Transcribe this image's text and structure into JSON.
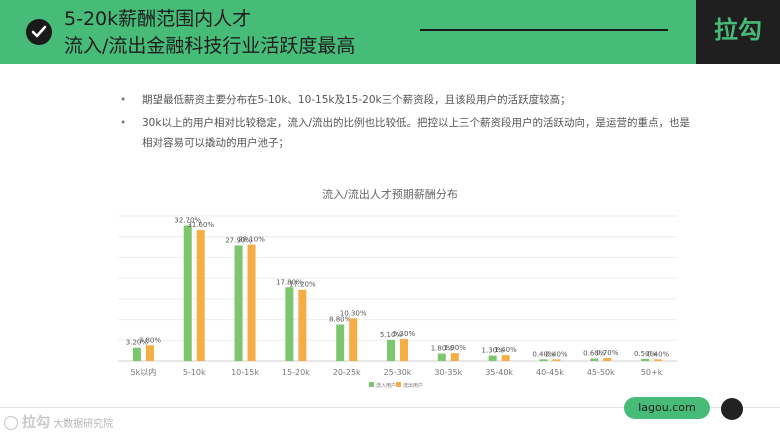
{
  "header": {
    "title_line1": "5-20k薪酬范围内人才",
    "title_line2": "流入/流出金融科技行业活跃度最高",
    "check_icon": "check-circle-icon",
    "accent_color": "#47bb78",
    "dark_color": "#1f1f1f"
  },
  "brand": {
    "label": "拉勾"
  },
  "bullets": [
    {
      "marker": "•",
      "text": "期望最低薪资主要分布在5-10k、10-15k及15-20k三个薪资段，且该段用户的活跃度较高；"
    },
    {
      "marker": "•",
      "text": "30k以上的用户相对比较稳定，流入/流出的比例也比较低。把控以上三个薪资段用户的活跃动向，是运营的重点，也是相对容易可以撬动的用户池子；"
    }
  ],
  "chart_data": {
    "type": "bar",
    "title": "流入/流出人才预期薪酬分布",
    "categories": [
      "5k以内",
      "5-10k",
      "10-15k",
      "15-20k",
      "20-25k",
      "25-30k",
      "30-35k",
      "35-40k",
      "40-45k",
      "45-50k",
      "50+k"
    ],
    "series": [
      {
        "name": "流入用户",
        "color": "#7dc66e",
        "values": [
          3.2,
          32.7,
          27.9,
          17.8,
          8.8,
          5.1,
          1.8,
          1.3,
          0.4,
          0.6,
          0.5
        ],
        "labels": [
          "3.20%",
          "32.70%",
          "27.90%",
          "17.80%",
          "8.80%",
          "5.10%",
          "1.80%",
          "1.30%",
          "0.40%",
          "0.60%",
          "0.50%"
        ]
      },
      {
        "name": "流出用户",
        "color": "#f5ad46",
        "values": [
          3.8,
          31.6,
          28.1,
          17.2,
          10.3,
          5.3,
          1.9,
          1.4,
          0.4,
          0.7,
          0.4
        ],
        "labels": [
          "3.80%",
          "31.60%",
          "28.10%",
          "17.20%",
          "10.30%",
          "5.30%",
          "1.90%",
          "1.40%",
          "0.40%",
          "0.70%",
          "0.40%"
        ]
      }
    ],
    "ylim": [
      0,
      35
    ],
    "grid": true,
    "legend": "bottom"
  },
  "footer": {
    "site_label": "lagou.com",
    "watermark_text": "大数据研究院",
    "watermark_brand": "拉勾"
  }
}
